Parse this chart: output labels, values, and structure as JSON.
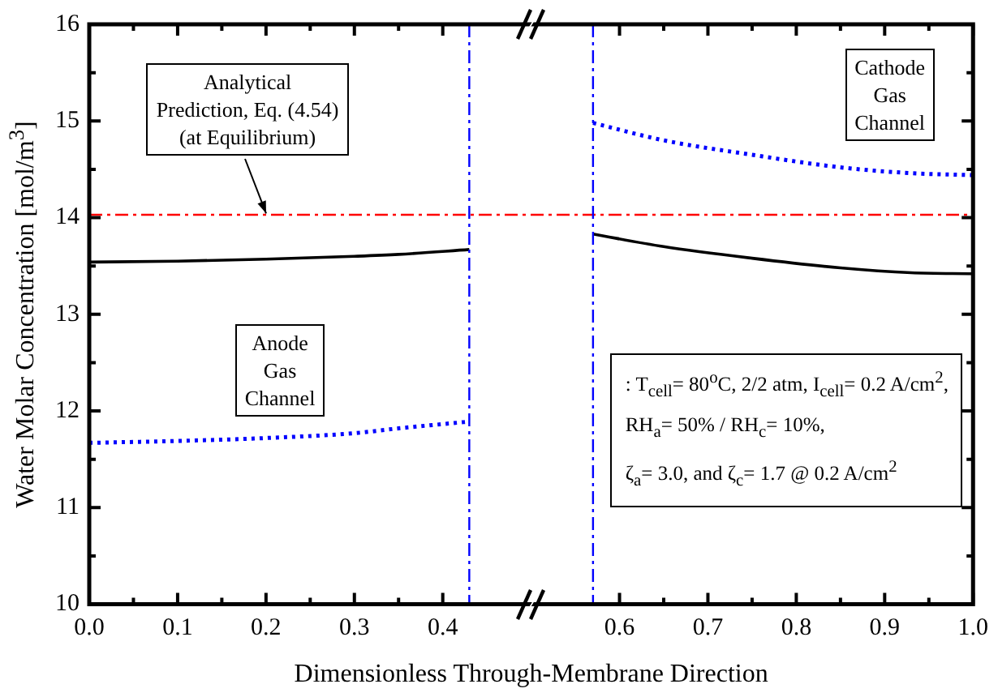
{
  "chart_data": {
    "type": "line",
    "xlabel": "Dimensionless Through-Membrane Direction",
    "ylabel": "Water Molar Concentration [mol/m$^{3}$]",
    "x": [
      0,
      0.1,
      0.2,
      0.3,
      0.35,
      0.43,
      0.5,
      0.57,
      0.65,
      0.75,
      0.85,
      0.93,
      1.0
    ],
    "series": [
      {
        "color": "#000000",
        "line_style": "solid",
        "values": [
          13.54,
          13.55,
          13.57,
          13.6,
          13.62,
          13.67,
          null,
          13.83,
          13.7,
          13.58,
          13.48,
          13.43,
          13.42
        ]
      },
      {
        "color": "#0000ff",
        "line_style": "dotted",
        "values": [
          11.67,
          11.69,
          11.72,
          11.77,
          11.82,
          11.89,
          null,
          14.98,
          14.8,
          14.65,
          14.52,
          14.46,
          14.44
        ]
      }
    ],
    "xlim": [
      0,
      1
    ],
    "ylim": [
      10,
      16
    ],
    "xticks": [
      {
        "value": 0,
        "label": "0.0"
      },
      {
        "value": 0.05,
        "label": null
      },
      {
        "value": 0.1,
        "label": "0.1"
      },
      {
        "value": 0.15,
        "label": null
      },
      {
        "value": 0.2,
        "label": "0.2"
      },
      {
        "value": 0.25,
        "label": null
      },
      {
        "value": 0.3,
        "label": "0.3"
      },
      {
        "value": 0.35,
        "label": null
      },
      {
        "value": 0.4,
        "label": "0.4"
      },
      {
        "value": 0.6,
        "label": "0.6"
      },
      {
        "value": 0.65,
        "label": null
      },
      {
        "value": 0.7,
        "label": "0.7"
      },
      {
        "value": 0.75,
        "label": null
      },
      {
        "value": 0.8,
        "label": "0.8"
      },
      {
        "value": 0.85,
        "label": null
      },
      {
        "value": 0.9,
        "label": "0.9"
      },
      {
        "value": 0.95,
        "label": null
      },
      {
        "value": 1,
        "label": "1.0"
      }
    ],
    "yticks": [
      10,
      {
        "value": 10.5,
        "label": null
      },
      11,
      {
        "value": 11.5,
        "label": null
      },
      12,
      {
        "value": 12.5,
        "label": null
      },
      13,
      {
        "value": 13.5,
        "label": null
      },
      14,
      {
        "value": 14.5,
        "label": null
      },
      15,
      {
        "value": 15.5,
        "label": null
      },
      16
    ],
    "ref_lines": [
      {
        "axis": "y",
        "value": 14.03,
        "label": "Analytical\nPrediction, Eq. (4.54)\n(at Equilibrium)",
        "color": "#ff0000",
        "line_style": "dashdot"
      },
      {
        "axis": "x",
        "value": 0.43,
        "color": "#0000ff",
        "line_style": "dashdot"
      },
      {
        "axis": "x",
        "value": 0.57,
        "color": "#0000ff",
        "line_style": "dashdot"
      }
    ],
    "annotations": [
      "Anode\nGas\nChannel",
      "Cathode\nGas\nChannel",
      ": T$_{cell}$= 80$^{o}$C, 2/2 atm, I$_{cell}$= 0.2 A/cm$^{2}$,\nRH$_{a}$= 50% / RH$_{c}$= 10%,\nζ$_{a}$= 3.0, and ζ$_{c}$= 1.7 @ 0.2 A/cm$^{2}$"
    ],
    "grid": false,
    "marker": "none"
  }
}
